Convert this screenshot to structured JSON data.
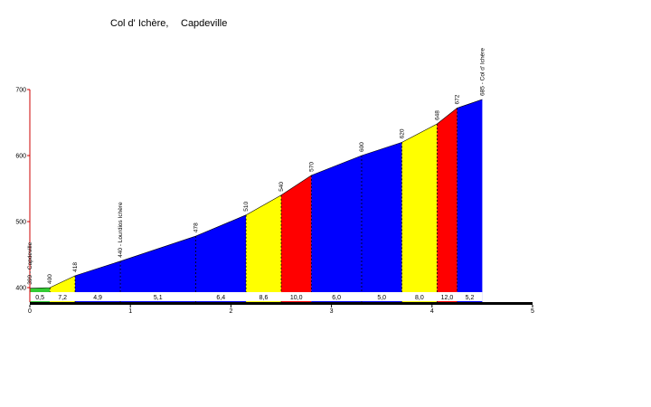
{
  "chart_data": {
    "type": "area",
    "title": "Col d' Ichère,",
    "subtitle": "Capdeville",
    "xlabel": "",
    "ylabel": "",
    "xlim": [
      0,
      5
    ],
    "ylim": [
      385,
      700
    ],
    "x_ticks": [
      "0",
      "1",
      "2",
      "3",
      "4",
      "5"
    ],
    "y_ticks": [
      "400",
      "500",
      "600",
      "700"
    ],
    "grid": false,
    "legend": "none",
    "profile": [
      {
        "km": 0.0,
        "alt": 399
      },
      {
        "km": 0.2,
        "alt": 400
      },
      {
        "km": 0.45,
        "alt": 418
      },
      {
        "km": 0.9,
        "alt": 440
      },
      {
        "km": 1.65,
        "alt": 478
      },
      {
        "km": 2.15,
        "alt": 510
      },
      {
        "km": 2.5,
        "alt": 540
      },
      {
        "km": 2.8,
        "alt": 570
      },
      {
        "km": 3.3,
        "alt": 600
      },
      {
        "km": 3.7,
        "alt": 620
      },
      {
        "km": 4.05,
        "alt": 648
      },
      {
        "km": 4.25,
        "alt": 672
      },
      {
        "km": 4.5,
        "alt": 685
      }
    ],
    "segments": [
      {
        "from": 0.0,
        "to": 0.2,
        "grade": "0,5",
        "color": "#33cc33"
      },
      {
        "from": 0.2,
        "to": 0.45,
        "grade": "7,2",
        "color": "#ffff00"
      },
      {
        "from": 0.45,
        "to": 0.9,
        "grade": "4,9",
        "color": "#0000ff"
      },
      {
        "from": 0.9,
        "to": 1.65,
        "grade": "5,1",
        "color": "#0000ff"
      },
      {
        "from": 1.65,
        "to": 2.15,
        "grade": "6,4",
        "color": "#0000ff"
      },
      {
        "from": 2.15,
        "to": 2.5,
        "grade": "8,6",
        "color": "#ffff00"
      },
      {
        "from": 2.5,
        "to": 2.8,
        "grade": "10,0",
        "color": "#ff0000"
      },
      {
        "from": 2.8,
        "to": 3.3,
        "grade": "6,0",
        "color": "#0000ff"
      },
      {
        "from": 3.3,
        "to": 3.7,
        "grade": "5,0",
        "color": "#0000ff"
      },
      {
        "from": 3.7,
        "to": 4.05,
        "grade": "8,0",
        "color": "#ffff00"
      },
      {
        "from": 4.05,
        "to": 4.25,
        "grade": "12,0",
        "color": "#ff0000"
      },
      {
        "from": 4.25,
        "to": 4.5,
        "grade": "5,2",
        "color": "#0000ff"
      }
    ],
    "point_labels": [
      {
        "km": 0.0,
        "text": "399 - Capdeville"
      },
      {
        "km": 0.2,
        "text": "400"
      },
      {
        "km": 0.45,
        "text": "418"
      },
      {
        "km": 0.9,
        "text": "440 - Lourdios Ichère"
      },
      {
        "km": 1.65,
        "text": "478"
      },
      {
        "km": 2.15,
        "text": "510"
      },
      {
        "km": 2.5,
        "text": "540"
      },
      {
        "km": 2.8,
        "text": "570"
      },
      {
        "km": 3.3,
        "text": "600"
      },
      {
        "km": 3.7,
        "text": "620"
      },
      {
        "km": 4.05,
        "text": "648"
      },
      {
        "km": 4.25,
        "text": "672"
      },
      {
        "km": 4.5,
        "text": "685 - Col d' Ichère"
      }
    ]
  }
}
